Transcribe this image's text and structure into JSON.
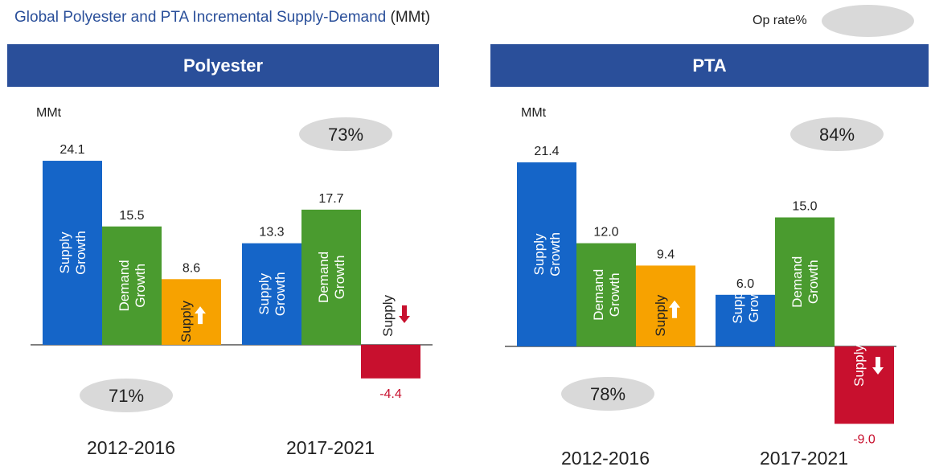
{
  "title": {
    "main": "Global Polyester and PTA Incremental Supply-Demand",
    "unit": "(MMt)"
  },
  "legend": {
    "label": "Op rate%",
    "swatch_color": "#d9d9d9"
  },
  "colors": {
    "supply_growth": "#1565c8",
    "demand_growth": "#4a9b2f",
    "balance_positive": "#f7a200",
    "balance_negative": "#c8102e",
    "header": "#2a4f9a",
    "arrow_positive": "#ffffff",
    "arrow_negative": "#c8102e",
    "negative_label": "#c8102e"
  },
  "chart_data": [
    {
      "type": "bar",
      "title": "Polyester",
      "ylabel": "MMt",
      "categories": [
        "2012-2016",
        "2017-2021"
      ],
      "series": [
        {
          "name": "Supply Growth",
          "values": [
            24.1,
            13.3
          ]
        },
        {
          "name": "Demand Growth",
          "values": [
            15.5,
            17.7
          ]
        },
        {
          "name": "Supply",
          "values": [
            8.6,
            -4.4
          ]
        }
      ],
      "value_labels": [
        [
          "24.1",
          "15.5",
          "8.6"
        ],
        [
          "13.3",
          "17.7",
          "-4.4"
        ]
      ],
      "bar_labels": [
        [
          "Supply\nGrowth",
          "Demand\nGrowth",
          "Supply"
        ],
        [
          "Supply\nGrowth",
          "Demand\nGrowth",
          "Supply"
        ]
      ],
      "op_rates": [
        "71%",
        "73%"
      ],
      "ylim": [
        -9.5,
        26
      ]
    },
    {
      "type": "bar",
      "title": "PTA",
      "ylabel": "MMt",
      "categories": [
        "2012-2016",
        "2017-2021"
      ],
      "series": [
        {
          "name": "Supply Growth",
          "values": [
            21.4,
            6.0
          ]
        },
        {
          "name": "Demand Growth",
          "values": [
            12.0,
            15.0
          ]
        },
        {
          "name": "Supply",
          "values": [
            9.4,
            -9.0
          ]
        }
      ],
      "value_labels": [
        [
          "21.4",
          "12.0",
          "9.4"
        ],
        [
          "6.0",
          "15.0",
          "-9.0"
        ]
      ],
      "bar_labels": [
        [
          "Supply\nGrowth",
          "Demand\nGrowth",
          "Supply"
        ],
        [
          "Suppl\nGrow",
          "Demand\nGrowth",
          "Supply"
        ]
      ],
      "op_rates": [
        "78%",
        "84%"
      ],
      "ylim": [
        -9.5,
        26
      ]
    }
  ]
}
